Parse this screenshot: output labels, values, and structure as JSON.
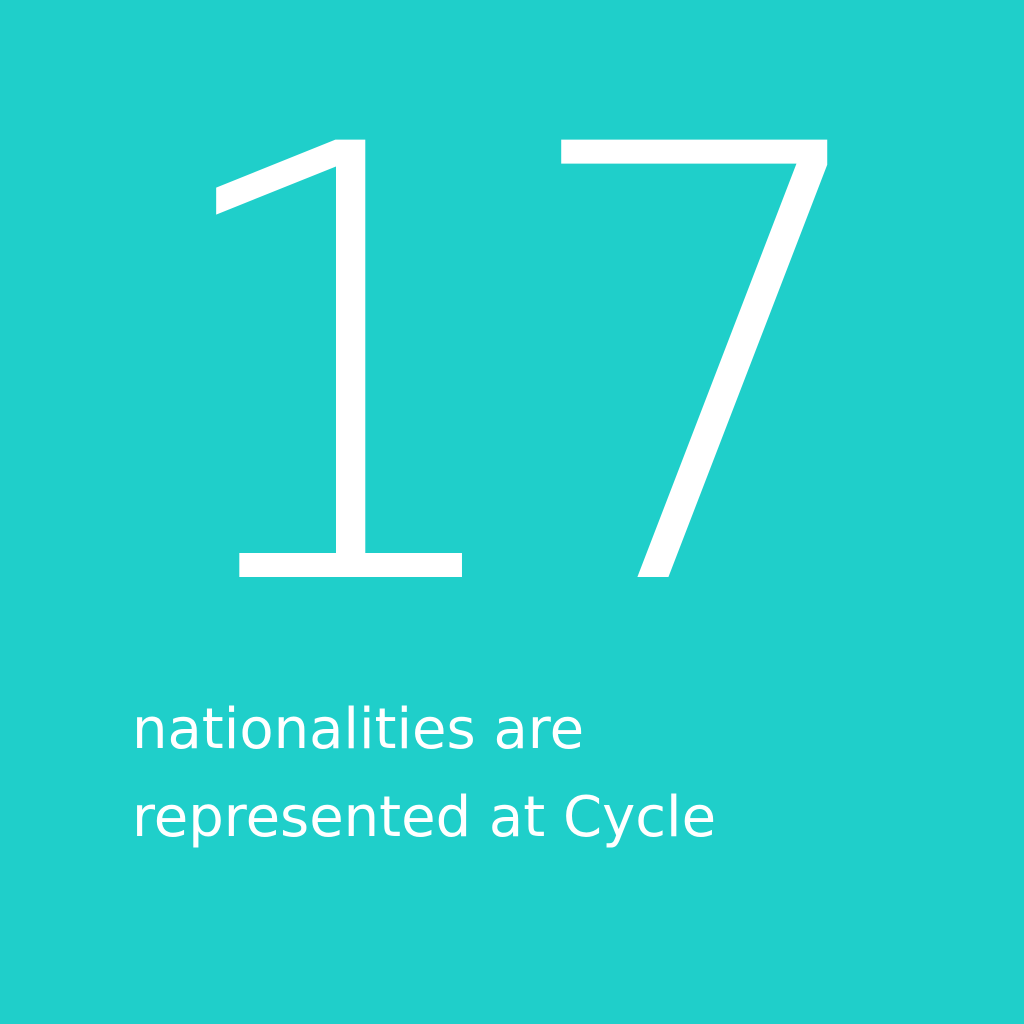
{
  "colors": {
    "background": "#1FCFCA",
    "text": "#FFFFFF"
  },
  "stat": {
    "number": "17",
    "caption_line1": "nationalities are",
    "caption_line2": "represented at Cycle"
  }
}
